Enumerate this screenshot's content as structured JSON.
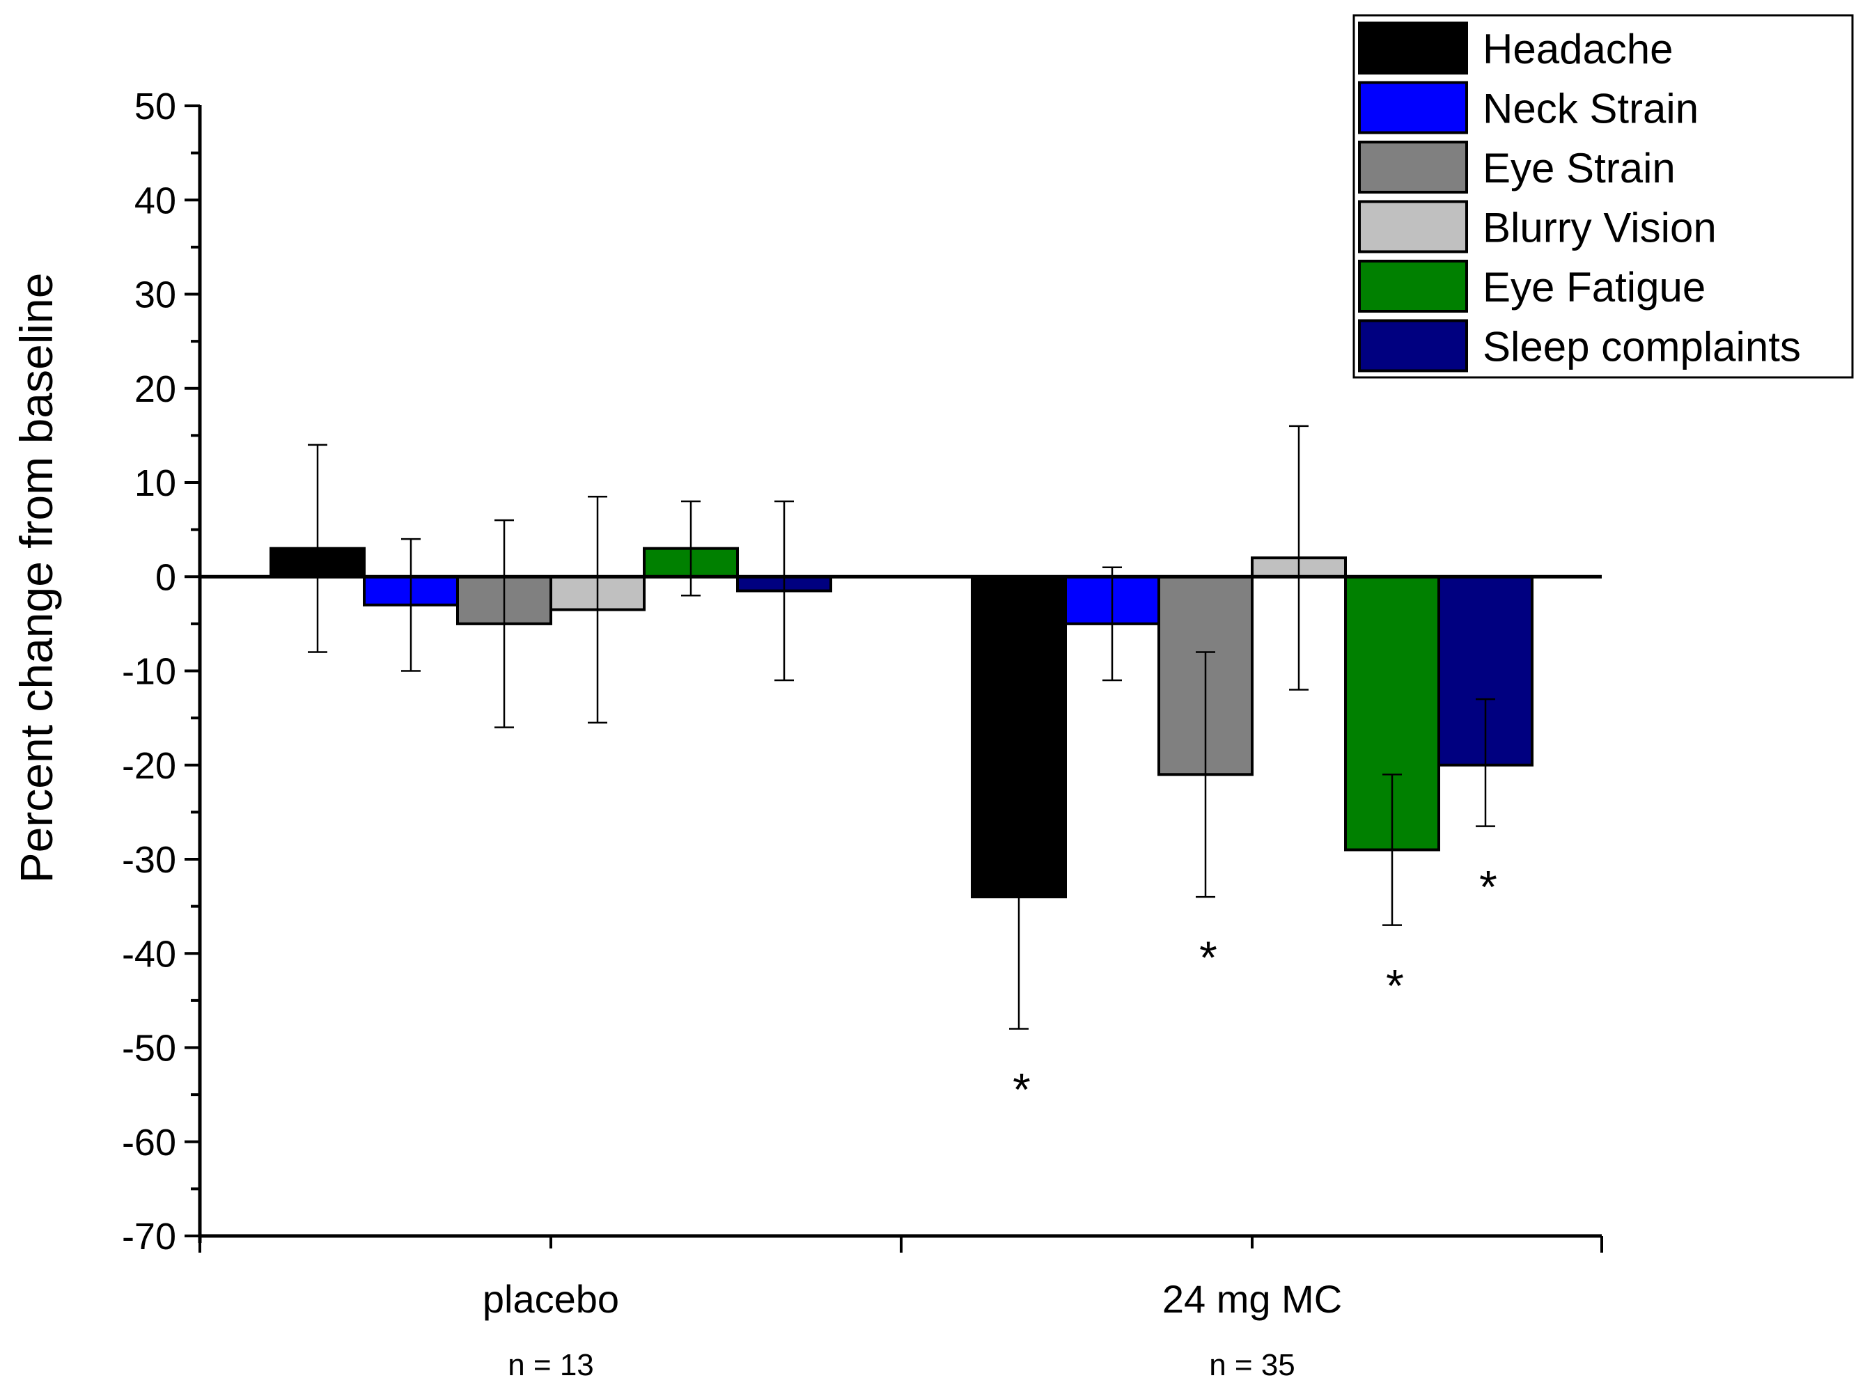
{
  "chart_data": {
    "type": "bar",
    "title": "",
    "xlabel": "",
    "ylabel": "Percent change from baseline",
    "ylim": [
      -70,
      50
    ],
    "yticks": [
      "50",
      "40",
      "30",
      "20",
      "10",
      "0",
      "-10",
      "-20",
      "-30",
      "-40",
      "-50",
      "-60",
      "-70"
    ],
    "categories": [
      "placebo",
      "24 mg MC"
    ],
    "category_notes": [
      "n = 13",
      "n = 35"
    ],
    "legend_position": "top-right",
    "series": [
      {
        "name": "Headache",
        "color": "#000000",
        "values": [
          3,
          -34
        ],
        "error_high": [
          14,
          null
        ],
        "error_low": [
          -8,
          -48
        ],
        "significance": [
          "",
          "*"
        ]
      },
      {
        "name": "Neck Strain",
        "color": "#0000ff",
        "values": [
          -3,
          -5
        ],
        "error_high": [
          4,
          1
        ],
        "error_low": [
          -10,
          -11
        ],
        "significance": [
          "",
          ""
        ]
      },
      {
        "name": "Eye Strain",
        "color": "#808080",
        "values": [
          -5,
          -21
        ],
        "error_high": [
          6,
          -8
        ],
        "error_low": [
          -16,
          -34
        ],
        "significance": [
          "",
          "*"
        ]
      },
      {
        "name": "Blurry Vision",
        "color": "#c0c0c0",
        "values": [
          -3.5,
          2
        ],
        "error_high": [
          8.5,
          16
        ],
        "error_low": [
          -15.5,
          -12
        ],
        "significance": [
          "",
          ""
        ]
      },
      {
        "name": "Eye Fatigue",
        "color": "#008000",
        "values": [
          3,
          -29
        ],
        "error_high": [
          8,
          -21
        ],
        "error_low": [
          -2,
          -37
        ],
        "significance": [
          "",
          "*"
        ]
      },
      {
        "name": "Sleep complaints",
        "color": "#000080",
        "values": [
          -1.5,
          -20
        ],
        "error_high": [
          8,
          -13
        ],
        "error_low": [
          -11,
          -26.5
        ],
        "significance": [
          "",
          "*"
        ]
      }
    ]
  }
}
